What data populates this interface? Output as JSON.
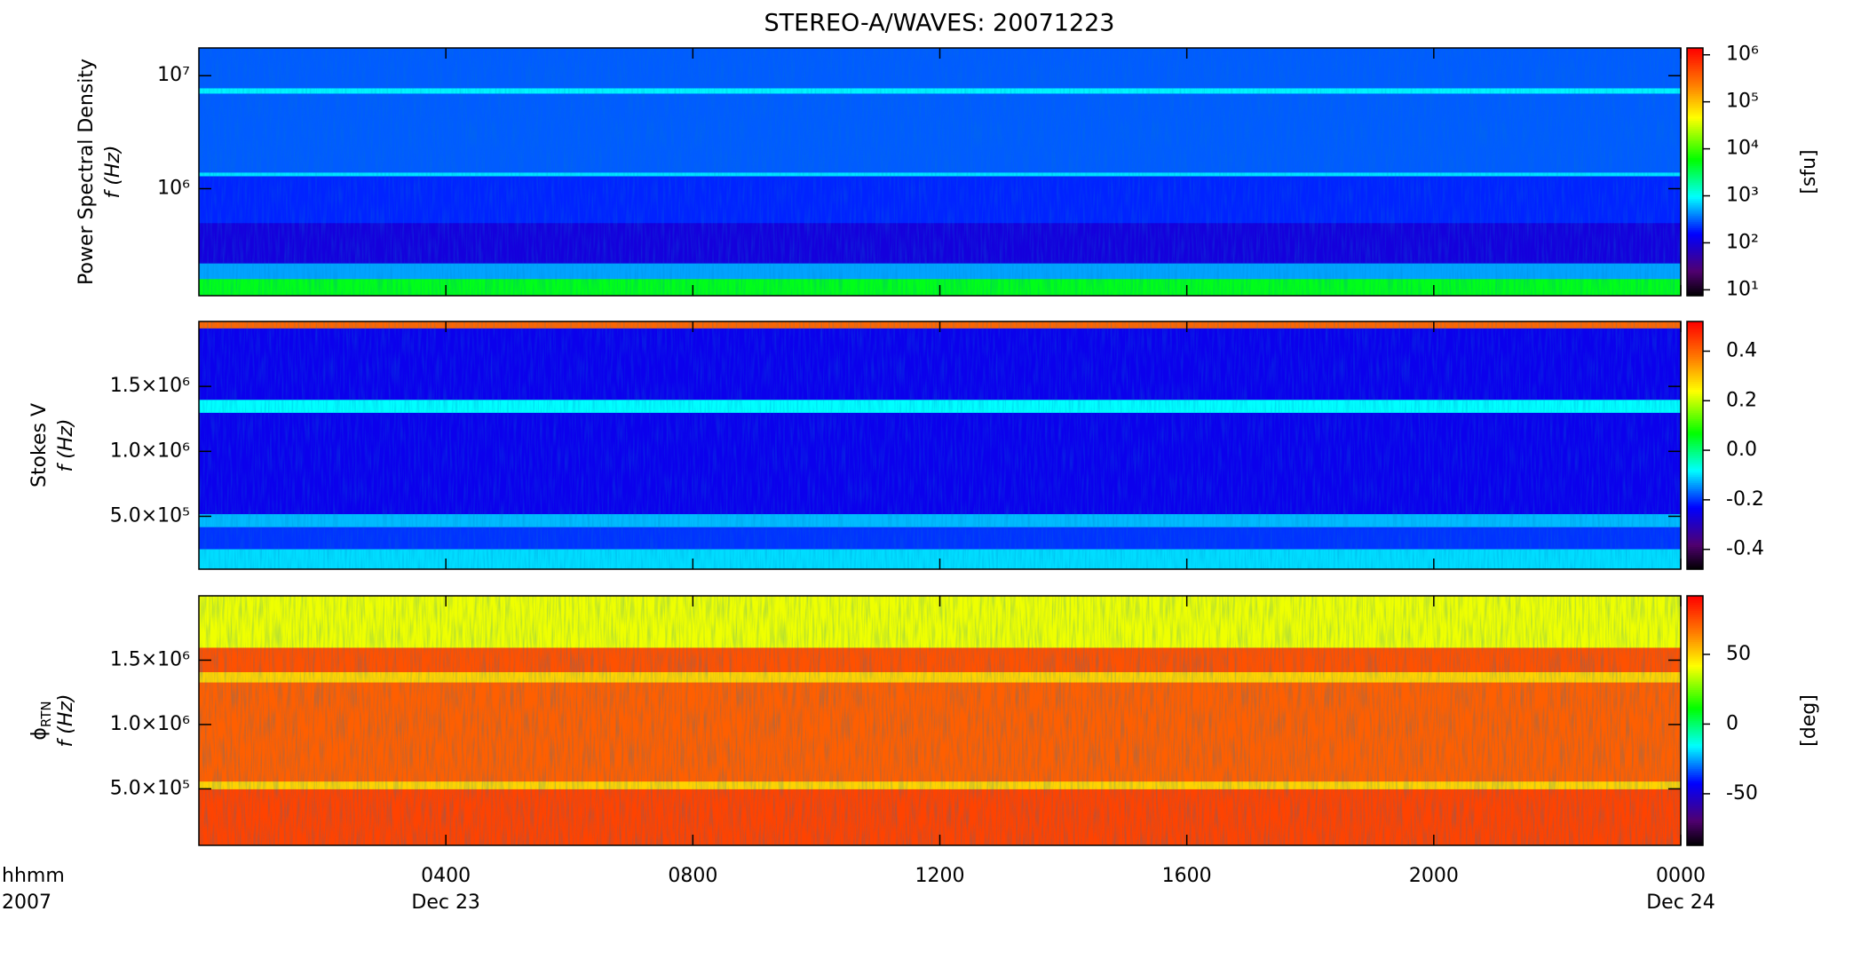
{
  "chart_data": [
    {
      "type": "heatmap",
      "title": "STEREO-A/WAVES: 20071223",
      "ylabel": "Power Spectral Density",
      "ylabel2": "f (Hz)",
      "log_y": true,
      "ylim": [
        113000,
        17600000
      ],
      "yticks": [
        {
          "value": 1000000,
          "label": "10⁶"
        },
        {
          "value": 10000000,
          "label": "10⁷"
        }
      ],
      "y_edges": [
        113000,
        160000,
        220000,
        500000,
        1300000,
        1400000,
        7000000,
        7800000,
        17600000
      ],
      "values": [
        5000,
        500,
        100,
        200,
        800,
        300,
        900,
        300
      ],
      "log_z": true,
      "zlim": [
        7.5,
        1400000
      ],
      "zlabel": "[sfu]",
      "zticks": [
        {
          "value": 10,
          "label": "10¹"
        },
        {
          "value": 100,
          "label": "10²"
        },
        {
          "value": 1000,
          "label": "10³"
        },
        {
          "value": 10000,
          "label": "10⁴"
        },
        {
          "value": 100000,
          "label": "10⁵"
        },
        {
          "value": 1000000,
          "label": "10⁶"
        }
      ]
    },
    {
      "type": "heatmap",
      "ylabel": "Stokes V",
      "ylabel2": "f (Hz)",
      "log_y": false,
      "ylim": [
        93000,
        2000000
      ],
      "yticks": [
        {
          "value": 500000,
          "label": "5.0×10⁵"
        },
        {
          "value": 1000000,
          "label": "1.0×10⁶"
        },
        {
          "value": 1500000,
          "label": "1.5×10⁶"
        }
      ],
      "y_edges": [
        93000,
        250000,
        420000,
        520000,
        1300000,
        1400000,
        1950000,
        2000000
      ],
      "values": [
        -0.1,
        -0.2,
        -0.12,
        -0.25,
        -0.08,
        -0.25,
        0.4
      ],
      "log_z": false,
      "zlim": [
        -0.48,
        0.52
      ],
      "zticks": [
        -0.4,
        -0.2,
        {
          "value": 0,
          "label": "0.0"
        },
        0.2,
        0.4
      ]
    },
    {
      "type": "heatmap",
      "ylabel": "ϕ",
      "ylabel_sub": "RTN",
      "ylabel2": "f (Hz)",
      "log_y": false,
      "ylim": [
        61000,
        2000000
      ],
      "yticks": [
        {
          "value": 500000,
          "label": "5.0×10⁵"
        },
        {
          "value": 1000000,
          "label": "1.0×10⁶"
        },
        {
          "value": 1500000,
          "label": "1.5×10⁶"
        }
      ],
      "y_edges": [
        61000,
        500000,
        560000,
        1330000,
        1410000,
        1600000,
        2000000
      ],
      "values": [
        78,
        50,
        72,
        50,
        75,
        40
      ],
      "log_z": false,
      "zlim": [
        -87,
        92
      ],
      "zlabel": "[deg]",
      "zticks": [
        -50,
        0,
        50
      ],
      "xlabel": [
        "hhmm",
        "2007"
      ],
      "xlim": [
        0,
        24
      ],
      "xticks": [
        {
          "value": 4,
          "label": "0400"
        },
        {
          "value": 8,
          "label": "0800"
        },
        {
          "value": 12,
          "label": "1200"
        },
        {
          "value": 16,
          "label": "1600"
        },
        {
          "value": 20,
          "label": "2000"
        },
        {
          "value": 24,
          "label": "0000"
        }
      ],
      "xdate_labels": [
        {
          "value": 4,
          "label": "Dec 23"
        },
        {
          "value": 24,
          "label": "Dec 24"
        }
      ]
    }
  ]
}
